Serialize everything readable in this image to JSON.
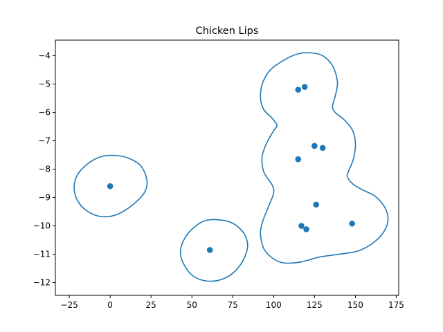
{
  "chart_data": {
    "type": "scatter",
    "title": "Chicken Lips",
    "xlabel": "",
    "ylabel": "",
    "xlim": [
      -33.5,
      176.5
    ],
    "ylim": [
      -12.45,
      -3.45
    ],
    "xticks": [
      -25,
      0,
      25,
      50,
      75,
      100,
      125,
      150,
      175
    ],
    "yticks": [
      -12,
      -11,
      -10,
      -9,
      -8,
      -7,
      -6,
      -5,
      -4
    ],
    "xtick_labels": [
      "−25",
      "0",
      "25",
      "50",
      "75",
      "100",
      "125",
      "150",
      "175"
    ],
    "ytick_labels": [
      "−12",
      "−11",
      "−10",
      "−9",
      "−8",
      "−7",
      "−6",
      "−5",
      "−4"
    ],
    "grid": false,
    "color": "#1f77b4",
    "points": [
      {
        "x": 0,
        "y": -8.6
      },
      {
        "x": 61,
        "y": -10.85
      },
      {
        "x": 115,
        "y": -5.2
      },
      {
        "x": 119,
        "y": -5.1
      },
      {
        "x": 125,
        "y": -7.18
      },
      {
        "x": 130,
        "y": -7.25
      },
      {
        "x": 115,
        "y": -7.65
      },
      {
        "x": 126,
        "y": -9.25
      },
      {
        "x": 117,
        "y": -10.0
      },
      {
        "x": 120,
        "y": -10.12
      },
      {
        "x": 148,
        "y": -9.92
      }
    ],
    "contours": [
      {
        "closed": true,
        "points": [
          [
            4,
            -7.52
          ],
          [
            12,
            -7.63
          ],
          [
            19,
            -7.9
          ],
          [
            22.5,
            -8.4
          ],
          [
            21,
            -8.82
          ],
          [
            14,
            -9.25
          ],
          [
            5,
            -9.58
          ],
          [
            -4,
            -9.68
          ],
          [
            -12,
            -9.55
          ],
          [
            -19,
            -9.2
          ],
          [
            -22,
            -8.7
          ],
          [
            -20,
            -8.2
          ],
          [
            -13,
            -7.78
          ],
          [
            -5,
            -7.55
          ]
        ]
      },
      {
        "closed": true,
        "points": [
          [
            65,
            -9.78
          ],
          [
            74,
            -9.88
          ],
          [
            81,
            -10.2
          ],
          [
            84,
            -10.6
          ],
          [
            83,
            -11.0
          ],
          [
            78,
            -11.5
          ],
          [
            70,
            -11.85
          ],
          [
            60,
            -11.95
          ],
          [
            51,
            -11.78
          ],
          [
            45,
            -11.35
          ],
          [
            43,
            -10.9
          ],
          [
            46,
            -10.4
          ],
          [
            52,
            -10.02
          ],
          [
            58,
            -9.82
          ]
        ]
      },
      {
        "closed": true,
        "points": [
          [
            123,
            -3.9
          ],
          [
            130,
            -4.0
          ],
          [
            136,
            -4.35
          ],
          [
            139,
            -4.9
          ],
          [
            138,
            -5.35
          ],
          [
            136,
            -5.8
          ],
          [
            138,
            -6.02
          ],
          [
            143,
            -6.25
          ],
          [
            148,
            -6.6
          ],
          [
            150,
            -7.05
          ],
          [
            149,
            -7.6
          ],
          [
            146,
            -8.05
          ],
          [
            145,
            -8.25
          ],
          [
            148,
            -8.5
          ],
          [
            154,
            -8.72
          ],
          [
            162,
            -8.95
          ],
          [
            168,
            -9.35
          ],
          [
            170,
            -9.75
          ],
          [
            168,
            -10.15
          ],
          [
            162,
            -10.55
          ],
          [
            152,
            -10.88
          ],
          [
            140,
            -11.0
          ],
          [
            128,
            -11.1
          ],
          [
            116,
            -11.28
          ],
          [
            104,
            -11.28
          ],
          [
            95,
            -10.9
          ],
          [
            92,
            -10.35
          ],
          [
            93,
            -9.9
          ],
          [
            97,
            -9.3
          ],
          [
            100,
            -8.85
          ],
          [
            99,
            -8.55
          ],
          [
            94,
            -8.1
          ],
          [
            93,
            -7.55
          ],
          [
            96,
            -7.05
          ],
          [
            100,
            -6.65
          ],
          [
            102,
            -6.45
          ],
          [
            99,
            -6.2
          ],
          [
            94,
            -5.9
          ],
          [
            92,
            -5.5
          ],
          [
            93,
            -5.0
          ],
          [
            98,
            -4.5
          ],
          [
            108,
            -4.1
          ],
          [
            116,
            -3.92
          ]
        ]
      }
    ]
  }
}
